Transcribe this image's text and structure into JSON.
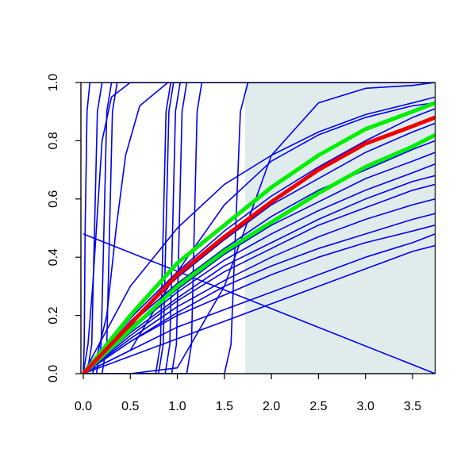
{
  "chart_data": {
    "type": "line",
    "color": "#0000ee",
    "xlim": [
      -0.025,
      3.74
    ],
    "ylim": [
      0,
      1
    ],
    "shaded_x": [
      1.72,
      3.74
    ],
    "shaded_color": "#e0ecec",
    "xticks": [
      {
        "value": 0,
        "label": "0.0"
      },
      {
        "value": 0.5,
        "label": "0.5"
      },
      {
        "value": 1,
        "label": "1.0"
      },
      {
        "value": 1.5,
        "label": "1.5"
      },
      {
        "value": 2,
        "label": "2.0"
      },
      {
        "value": 2.5,
        "label": "2.5"
      },
      {
        "value": 3,
        "label": "3.0"
      },
      {
        "value": 3.5,
        "label": "3.5"
      }
    ],
    "yticks": [
      {
        "value": 0,
        "label": "0.0"
      },
      {
        "value": 0.2,
        "label": "0.2"
      },
      {
        "value": 0.4,
        "label": "0.4"
      },
      {
        "value": 0.6,
        "label": "0.6"
      },
      {
        "value": 0.8,
        "label": "0.8"
      },
      {
        "value": 1,
        "label": "1.0"
      }
    ],
    "x": [
      0,
      0.5,
      1,
      1.5,
      2,
      2.5,
      3,
      3.5,
      3.74
    ],
    "series": [
      {
        "values": [
          0,
          0.19,
          0.35,
          0.49,
          0.61,
          0.71,
          0.8,
          0.88,
          0.91
        ]
      },
      {
        "values": [
          0,
          0.18,
          0.33,
          0.46,
          0.58,
          0.67,
          0.76,
          0.83,
          0.86
        ]
      },
      {
        "values": [
          0,
          0.17,
          0.31,
          0.43,
          0.54,
          0.63,
          0.7,
          0.77,
          0.8
        ]
      },
      {
        "values": [
          0,
          0.16,
          0.29,
          0.41,
          0.51,
          0.59,
          0.67,
          0.73,
          0.76
        ]
      },
      {
        "values": [
          0,
          0.15,
          0.28,
          0.39,
          0.48,
          0.56,
          0.63,
          0.69,
          0.72
        ]
      },
      {
        "values": [
          0,
          0.14,
          0.26,
          0.37,
          0.45,
          0.53,
          0.6,
          0.66,
          0.68
        ]
      },
      {
        "values": [
          0,
          0.13,
          0.25,
          0.35,
          0.43,
          0.51,
          0.57,
          0.63,
          0.65
        ]
      },
      {
        "values": [
          0,
          0.12,
          0.23,
          0.32,
          0.4,
          0.47,
          0.53,
          0.58,
          0.6
        ]
      },
      {
        "values": [
          0,
          0.11,
          0.21,
          0.3,
          0.37,
          0.43,
          0.48,
          0.53,
          0.55
        ]
      },
      {
        "values": [
          0,
          0.11,
          0.2,
          0.27,
          0.34,
          0.4,
          0.45,
          0.49,
          0.51
        ]
      },
      {
        "values": [
          0,
          0.08,
          0.16,
          0.22,
          0.28,
          0.34,
          0.4,
          0.45,
          0.48
        ]
      },
      {
        "values": [
          0,
          0.06,
          0.12,
          0.18,
          0.24,
          0.3,
          0.36,
          0.42,
          0.44
        ]
      },
      {
        "values": [
          0,
          0.3,
          0.5,
          0.65,
          0.75,
          0.83,
          0.89,
          0.93,
          0.95
        ]
      },
      {
        "values": [
          0,
          0.08,
          0.35,
          0.58,
          0.73,
          0.82,
          0.88,
          0.92,
          0.93
        ]
      },
      {
        "values": [
          0,
          0,
          0.02,
          0.3,
          0.75,
          0.93,
          0.98,
          0.99,
          1
        ]
      },
      {
        "x": [
          0,
          3.74
        ],
        "values": [
          0.48,
          0
        ]
      },
      {
        "x": [
          0,
          0.01,
          0.02,
          0.04,
          0.07,
          3.74
        ],
        "values": [
          0,
          0.1,
          0.5,
          0.9,
          1,
          1
        ]
      },
      {
        "x": [
          0,
          0.05,
          0.1,
          0.15,
          0.2,
          0.3,
          0.5,
          3.74
        ],
        "values": [
          0,
          0.1,
          0.3,
          0.55,
          0.8,
          0.95,
          1,
          1
        ]
      },
      {
        "x": [
          0,
          0.04,
          0.09,
          0.12,
          0.15,
          0.2,
          3.74
        ],
        "values": [
          0,
          0,
          0.1,
          0.5,
          0.9,
          1,
          1
        ]
      },
      {
        "x": [
          0,
          0.14,
          0.19,
          0.22,
          0.25,
          0.3,
          3.74
        ],
        "values": [
          0,
          0,
          0.1,
          0.5,
          0.9,
          1,
          1
        ]
      },
      {
        "x": [
          0,
          0.2,
          0.25,
          0.28,
          0.31,
          0.36,
          3.74
        ],
        "values": [
          0,
          0,
          0.1,
          0.5,
          0.9,
          1,
          1
        ]
      },
      {
        "x": [
          0,
          0.1,
          0.25,
          0.35,
          0.45,
          0.6,
          0.9,
          3.74
        ],
        "values": [
          0,
          0,
          0.2,
          0.5,
          0.75,
          0.92,
          1,
          1
        ]
      },
      {
        "x": [
          0,
          0.77,
          0.82,
          0.85,
          0.88,
          0.93,
          3.74
        ],
        "values": [
          0,
          0,
          0.1,
          0.5,
          0.9,
          1,
          1
        ]
      },
      {
        "x": [
          0,
          0.8,
          0.85,
          0.88,
          0.91,
          0.96,
          3.74
        ],
        "values": [
          0,
          0,
          0.1,
          0.5,
          0.9,
          1,
          1
        ]
      },
      {
        "x": [
          0,
          0.87,
          0.92,
          0.95,
          0.98,
          1.03,
          3.74
        ],
        "values": [
          0,
          0,
          0.1,
          0.5,
          0.9,
          1,
          1
        ]
      },
      {
        "x": [
          0,
          0.94,
          0.99,
          1.02,
          1.05,
          1.1,
          3.74
        ],
        "values": [
          0,
          0,
          0.1,
          0.5,
          0.9,
          1,
          1
        ]
      },
      {
        "x": [
          0,
          1.1,
          1.15,
          1.18,
          1.21,
          1.26,
          3.74
        ],
        "values": [
          0,
          0,
          0.1,
          0.5,
          0.9,
          1,
          1
        ]
      },
      {
        "x": [
          0,
          1.5,
          1.57,
          1.62,
          1.67,
          1.75,
          3.74
        ],
        "values": [
          0,
          0,
          0.1,
          0.5,
          0.9,
          1,
          1
        ]
      },
      {
        "color": "#00ee00",
        "values": [
          0,
          0.2,
          0.38,
          0.51,
          0.64,
          0.75,
          0.84,
          0.9,
          0.93
        ]
      },
      {
        "color": "#00ee00",
        "values": [
          0,
          0.15,
          0.3,
          0.42,
          0.52,
          0.62,
          0.71,
          0.78,
          0.82
        ]
      },
      {
        "color": "#ee0000",
        "values": [
          0,
          0.17,
          0.34,
          0.47,
          0.59,
          0.7,
          0.79,
          0.85,
          0.88
        ]
      }
    ]
  }
}
